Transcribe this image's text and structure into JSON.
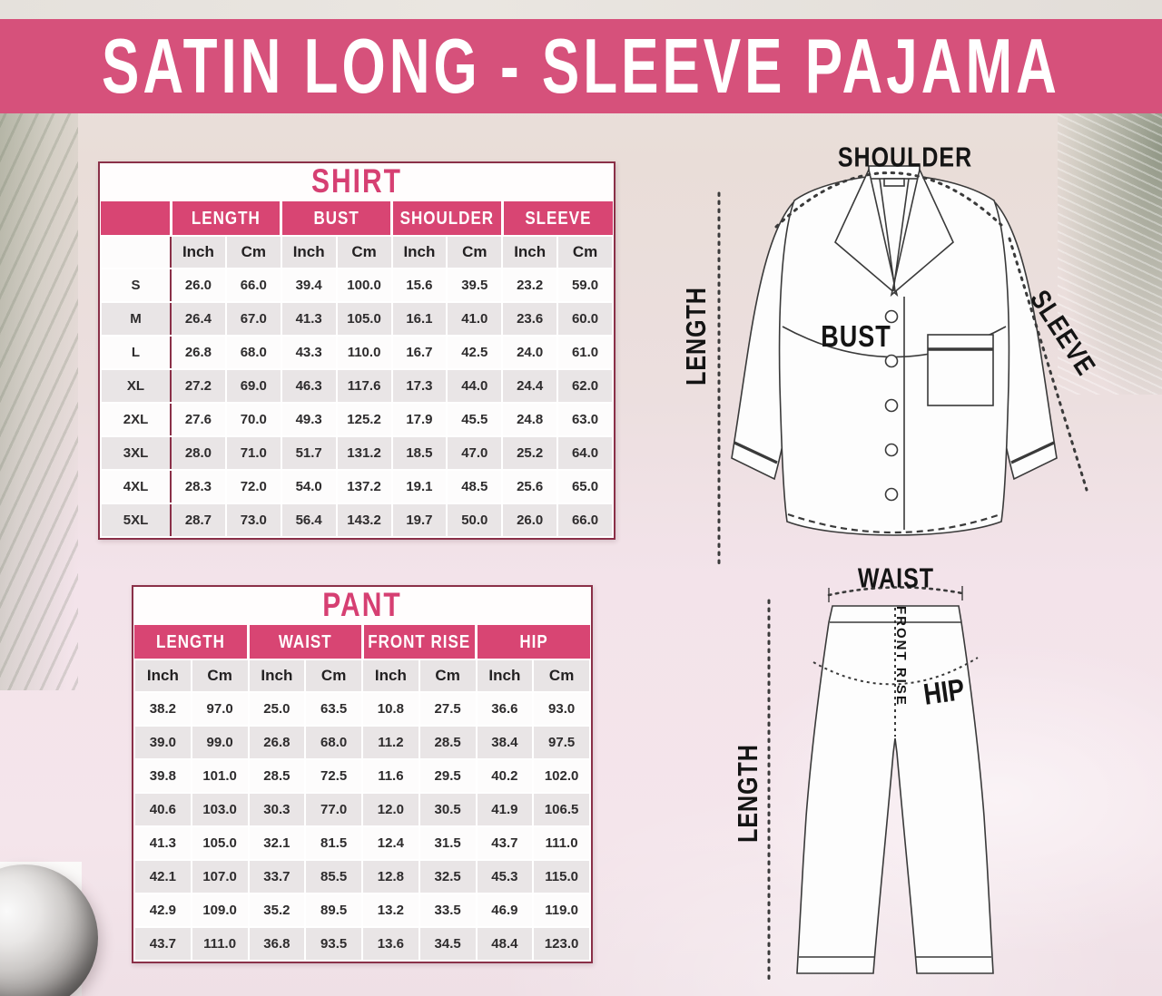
{
  "banner": {
    "title": "SATIN LONG - SLEEVE PAJAMA"
  },
  "shirt": {
    "title": "SHIRT",
    "groups": [
      "LENGTH",
      "BUST",
      "SHOULDER",
      "SLEEVE"
    ],
    "units": [
      "Inch",
      "Cm"
    ],
    "sizes": [
      "S",
      "M",
      "L",
      "XL",
      "2XL",
      "3XL",
      "4XL",
      "5XL"
    ],
    "rows": [
      [
        "26.0",
        "66.0",
        "39.4",
        "100.0",
        "15.6",
        "39.5",
        "23.2",
        "59.0"
      ],
      [
        "26.4",
        "67.0",
        "41.3",
        "105.0",
        "16.1",
        "41.0",
        "23.6",
        "60.0"
      ],
      [
        "26.8",
        "68.0",
        "43.3",
        "110.0",
        "16.7",
        "42.5",
        "24.0",
        "61.0"
      ],
      [
        "27.2",
        "69.0",
        "46.3",
        "117.6",
        "17.3",
        "44.0",
        "24.4",
        "62.0"
      ],
      [
        "27.6",
        "70.0",
        "49.3",
        "125.2",
        "17.9",
        "45.5",
        "24.8",
        "63.0"
      ],
      [
        "28.0",
        "71.0",
        "51.7",
        "131.2",
        "18.5",
        "47.0",
        "25.2",
        "64.0"
      ],
      [
        "28.3",
        "72.0",
        "54.0",
        "137.2",
        "19.1",
        "48.5",
        "25.6",
        "65.0"
      ],
      [
        "28.7",
        "73.0",
        "56.4",
        "143.2",
        "19.7",
        "50.0",
        "26.0",
        "66.0"
      ]
    ],
    "diagram_labels": {
      "shoulder": "SHOULDER",
      "length": "LENGTH",
      "sleeve": "SLEEVE",
      "bust": "BUST"
    }
  },
  "pant": {
    "title": "PANT",
    "groups": [
      "LENGTH",
      "WAIST",
      "FRONT RISE",
      "HIP"
    ],
    "units": [
      "Inch",
      "Cm"
    ],
    "rows": [
      [
        "38.2",
        "97.0",
        "25.0",
        "63.5",
        "10.8",
        "27.5",
        "36.6",
        "93.0"
      ],
      [
        "39.0",
        "99.0",
        "26.8",
        "68.0",
        "11.2",
        "28.5",
        "38.4",
        "97.5"
      ],
      [
        "39.8",
        "101.0",
        "28.5",
        "72.5",
        "11.6",
        "29.5",
        "40.2",
        "102.0"
      ],
      [
        "40.6",
        "103.0",
        "30.3",
        "77.0",
        "12.0",
        "30.5",
        "41.9",
        "106.5"
      ],
      [
        "41.3",
        "105.0",
        "32.1",
        "81.5",
        "12.4",
        "31.5",
        "43.7",
        "111.0"
      ],
      [
        "42.1",
        "107.0",
        "33.7",
        "85.5",
        "12.8",
        "32.5",
        "45.3",
        "115.0"
      ],
      [
        "42.9",
        "109.0",
        "35.2",
        "89.5",
        "13.2",
        "33.5",
        "46.9",
        "119.0"
      ],
      [
        "43.7",
        "111.0",
        "36.8",
        "93.5",
        "13.6",
        "34.5",
        "48.4",
        "123.0"
      ]
    ],
    "diagram_labels": {
      "waist": "WAIST",
      "front_rise": "FRONT RISE",
      "hip": "HIP",
      "length": "LENGTH"
    }
  },
  "colors": {
    "banner_pink": "#d6517b",
    "header_pink": "#d84573",
    "title_pink": "#d63f72",
    "border_maroon": "#8a3048",
    "row_alt_gray": "#e9e5e6"
  }
}
